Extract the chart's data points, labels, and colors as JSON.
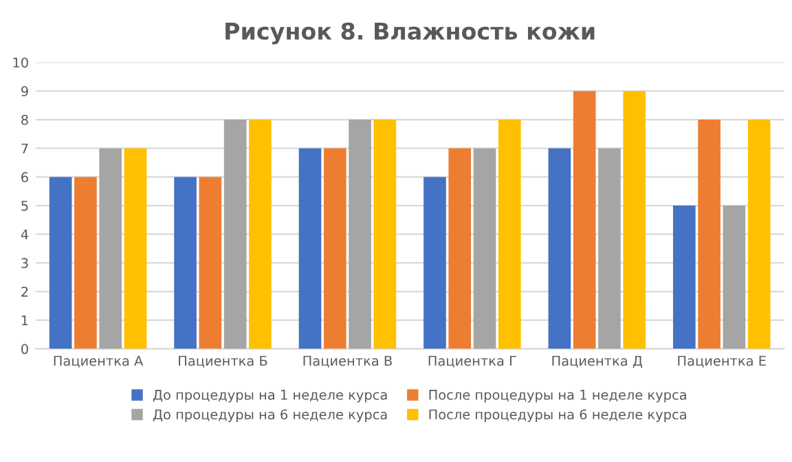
{
  "chart_data": {
    "type": "bar",
    "title": "Рисунок 8. Влажность кожи",
    "categories": [
      "Пациентка А",
      "Пациентка Б",
      "Пациентка В",
      "Пациентка Г",
      "Пациентка Д",
      "Пациентка Е"
    ],
    "series": [
      {
        "name": "До процедуры на 1 неделе курса",
        "color": "#4472c4",
        "values": [
          6,
          6,
          7,
          6,
          7,
          5
        ]
      },
      {
        "name": "После процедуры на 1 неделе курса",
        "color": "#ed7d31",
        "values": [
          6,
          6,
          7,
          7,
          9,
          8
        ]
      },
      {
        "name": "До процедуры на 6 неделе курса",
        "color": "#a5a5a5",
        "values": [
          7,
          8,
          8,
          7,
          7,
          5
        ]
      },
      {
        "name": "После процедуры на 6 неделе курса",
        "color": "#ffc000",
        "values": [
          7,
          8,
          8,
          8,
          9,
          8
        ]
      }
    ],
    "ylim": [
      0,
      10
    ],
    "yticks": [
      0,
      1,
      2,
      3,
      4,
      5,
      6,
      7,
      8,
      9,
      10
    ],
    "grid": "y",
    "legend": "bottom"
  }
}
